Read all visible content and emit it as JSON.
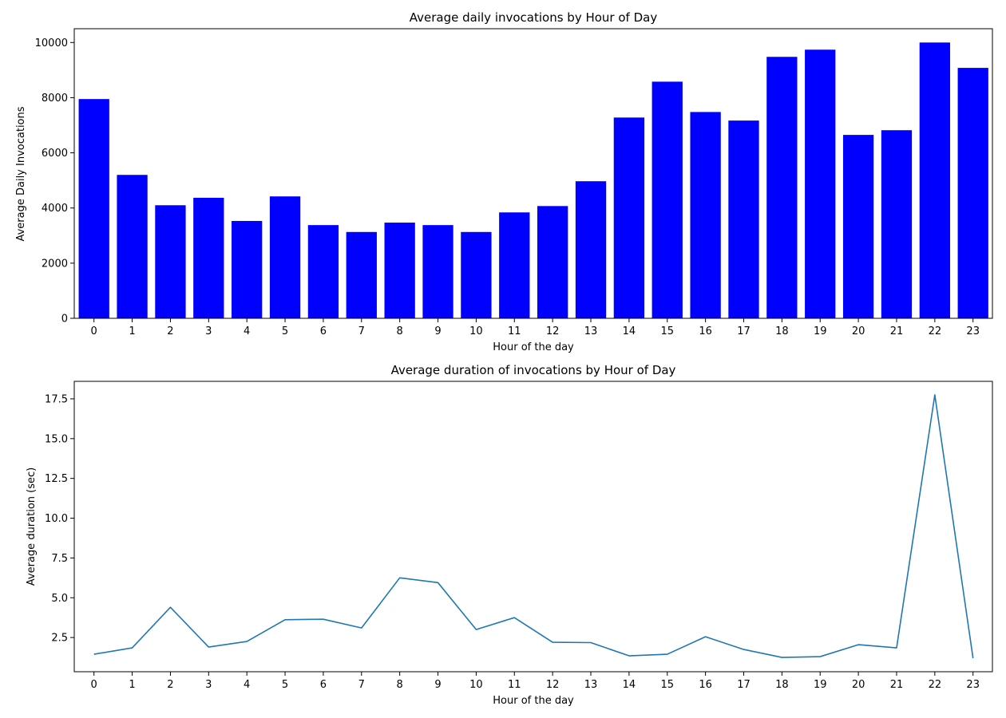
{
  "chart_data": [
    {
      "type": "bar",
      "title": "Average daily invocations by Hour of Day",
      "xlabel": "Hour of the day",
      "ylabel": "Average Daily Invocations",
      "categories": [
        "0",
        "1",
        "2",
        "3",
        "4",
        "5",
        "6",
        "7",
        "8",
        "9",
        "10",
        "11",
        "12",
        "13",
        "14",
        "15",
        "16",
        "17",
        "18",
        "19",
        "20",
        "21",
        "22",
        "23"
      ],
      "values": [
        7950,
        5200,
        4100,
        4370,
        3530,
        4420,
        3380,
        3130,
        3470,
        3380,
        3130,
        3840,
        4070,
        4970,
        7280,
        8580,
        7480,
        7170,
        9480,
        9740,
        6650,
        6820,
        10000,
        9080
      ],
      "ylim": [
        0,
        10500
      ],
      "yticks": [
        0,
        2000,
        4000,
        6000,
        8000,
        10000
      ],
      "color": "#0000ff",
      "grid": false
    },
    {
      "type": "line",
      "title": "Average duration of invocations by Hour of Day",
      "xlabel": "Hour of the day",
      "ylabel": "Average duration (sec)",
      "categories": [
        "0",
        "1",
        "2",
        "3",
        "4",
        "5",
        "6",
        "7",
        "8",
        "9",
        "10",
        "11",
        "12",
        "13",
        "14",
        "15",
        "16",
        "17",
        "18",
        "19",
        "20",
        "21",
        "22",
        "23"
      ],
      "values": [
        1.45,
        1.85,
        4.4,
        1.9,
        2.25,
        3.62,
        3.65,
        3.1,
        6.25,
        5.95,
        3.0,
        3.75,
        2.2,
        2.18,
        1.35,
        1.45,
        2.55,
        1.75,
        1.25,
        1.3,
        2.05,
        1.85,
        17.75,
        1.2
      ],
      "ylim": [
        0.35,
        18.6
      ],
      "yticks": [
        "2.5",
        "5.0",
        "7.5",
        "10.0",
        "12.5",
        "15.0",
        "17.5"
      ],
      "color": "#1f77b4",
      "grid": false
    }
  ]
}
